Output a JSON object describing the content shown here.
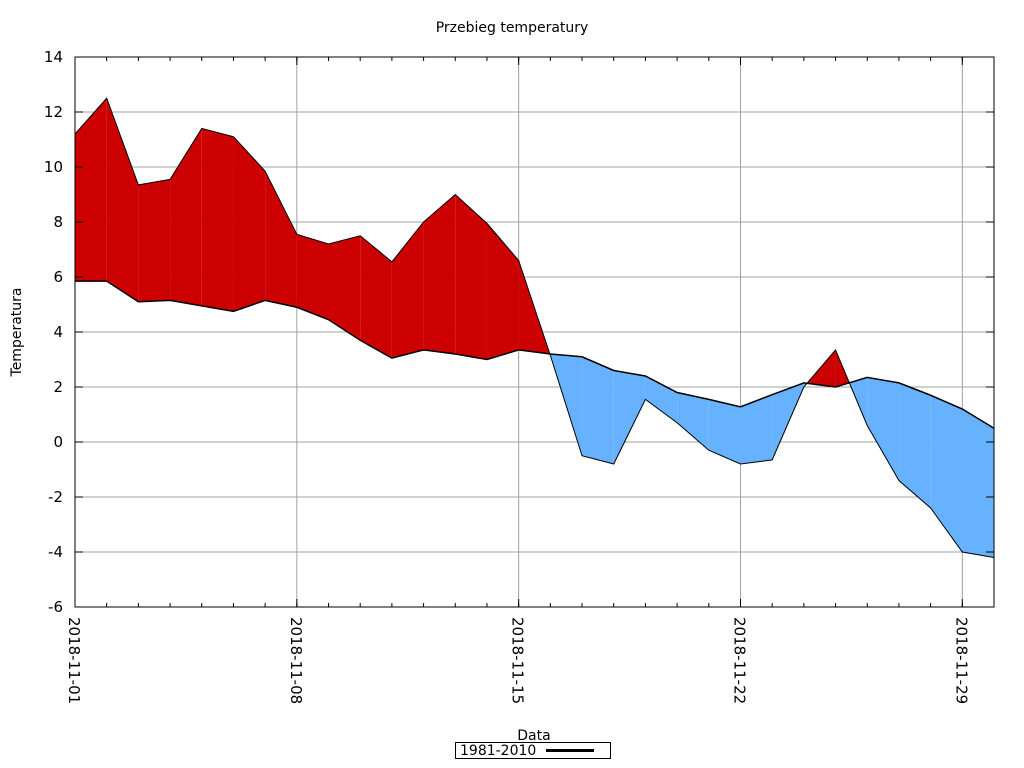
{
  "chart_data": {
    "type": "area",
    "title": "Przebieg temperatury",
    "xlabel": "Data",
    "ylabel": "Temperatura",
    "ylim": [
      -6,
      14
    ],
    "yticks": [
      -6,
      -4,
      -2,
      0,
      2,
      4,
      6,
      8,
      10,
      12,
      14
    ],
    "xlim": [
      "2018-11-01",
      "2018-11-30"
    ],
    "xticks": [
      "2018-11-01",
      "2018-11-08",
      "2018-11-15",
      "2018-11-22",
      "2018-11-29"
    ],
    "grid": true,
    "legend_position": "bottom-center",
    "colors": {
      "above": "#cc0000",
      "below": "#66b2ff",
      "line": "#000000"
    },
    "x": [
      "2018-11-01",
      "2018-11-02",
      "2018-11-03",
      "2018-11-04",
      "2018-11-05",
      "2018-11-06",
      "2018-11-07",
      "2018-11-08",
      "2018-11-09",
      "2018-11-10",
      "2018-11-11",
      "2018-11-12",
      "2018-11-13",
      "2018-11-14",
      "2018-11-15",
      "2018-11-16",
      "2018-11-17",
      "2018-11-18",
      "2018-11-19",
      "2018-11-20",
      "2018-11-21",
      "2018-11-22",
      "2018-11-23",
      "2018-11-24",
      "2018-11-25",
      "2018-11-26",
      "2018-11-27",
      "2018-11-28",
      "2018-11-29",
      "2018-11-30"
    ],
    "series": [
      {
        "values": [
          11.2,
          12.5,
          9.35,
          9.55,
          11.4,
          11.1,
          9.85,
          7.55,
          7.2,
          7.5,
          6.55,
          8.0,
          9.0,
          7.95,
          6.6,
          3.15,
          -0.5,
          -0.8,
          1.55,
          0.7,
          -0.3,
          -0.8,
          -0.65,
          2.0,
          3.35,
          0.6,
          -1.4,
          -2.4,
          -4.0,
          -4.2
        ]
      },
      {
        "name": "1981-2010",
        "values": [
          5.85,
          5.85,
          5.1,
          5.15,
          4.95,
          4.75,
          5.15,
          4.9,
          4.45,
          3.7,
          3.05,
          3.35,
          3.2,
          3.0,
          3.35,
          3.2,
          3.1,
          2.6,
          2.4,
          1.8,
          1.55,
          1.28,
          1.72,
          2.15,
          2.0,
          2.35,
          2.15,
          1.7,
          1.2,
          0.5
        ]
      }
    ]
  }
}
